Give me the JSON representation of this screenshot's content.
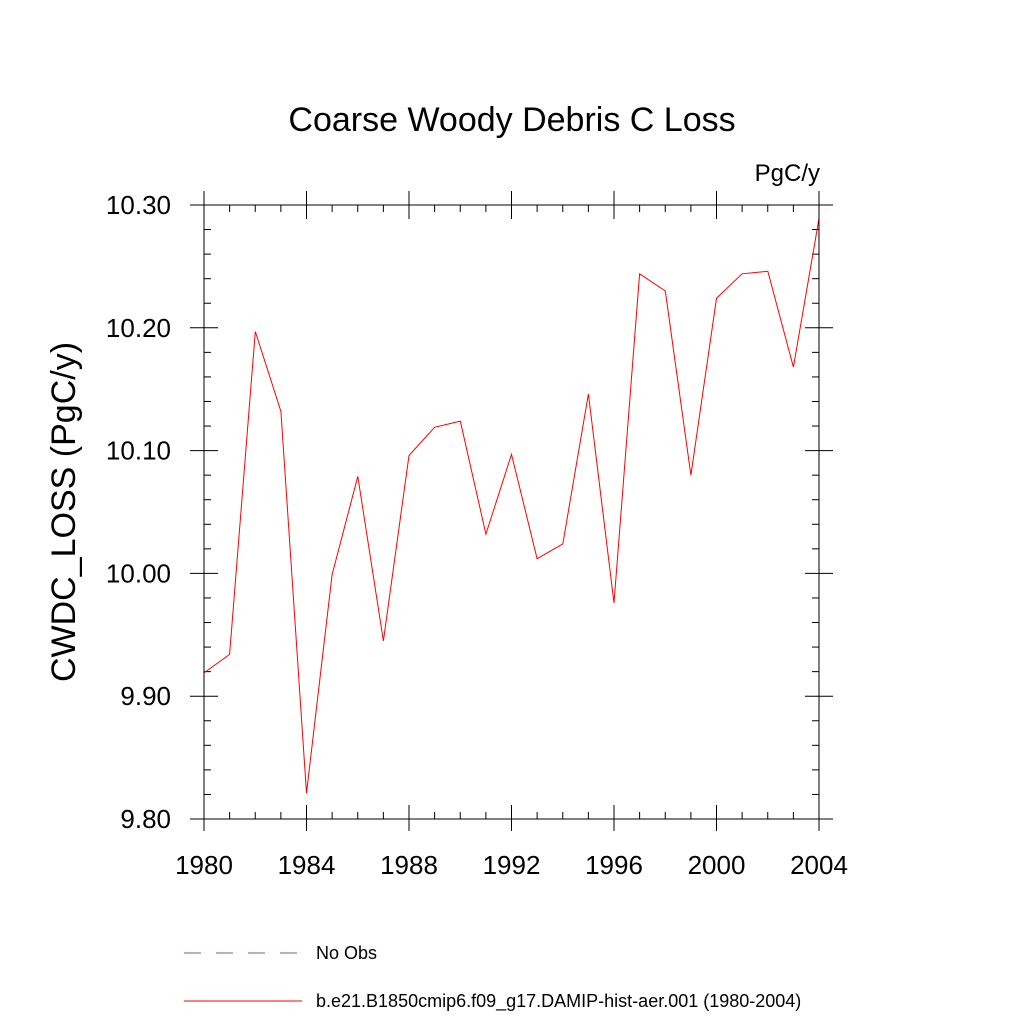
{
  "chart_data": {
    "type": "line",
    "title": "Coarse Woody Debris C Loss",
    "units_label": "PgC/y",
    "ylabel": "CWDC_LOSS  (PgC/y)",
    "xlabel": "",
    "xlim": [
      1980,
      2004
    ],
    "ylim": [
      9.8,
      10.3
    ],
    "x_ticks": [
      1980,
      1984,
      1988,
      1992,
      1996,
      2000,
      2004
    ],
    "x_tick_labels": [
      "1980",
      "1984",
      "1988",
      "1992",
      "1996",
      "2000",
      "2004"
    ],
    "y_ticks": [
      9.8,
      9.9,
      10.0,
      10.1,
      10.2,
      10.3
    ],
    "y_tick_labels": [
      "9.80",
      "9.90",
      "10.00",
      "10.10",
      "10.20",
      "10.30"
    ],
    "grid": false,
    "legend_position": "bottom",
    "series": [
      {
        "name": "b.e21.B1850cmip6.f09_g17.DAMIP-hist-aer.001 (1980-2004)",
        "color": "#ff0000",
        "line_style": "solid",
        "x": [
          1980,
          1981,
          1982,
          1983,
          1984,
          1985,
          1986,
          1987,
          1988,
          1989,
          1990,
          1991,
          1992,
          1993,
          1994,
          1995,
          1996,
          1997,
          1998,
          1999,
          2000,
          2001,
          2002,
          2003,
          2004
        ],
        "y": [
          9.919,
          9.934,
          10.197,
          10.132,
          9.821,
          9.999,
          10.079,
          9.945,
          10.096,
          10.119,
          10.124,
          10.032,
          10.097,
          10.012,
          10.024,
          10.146,
          9.976,
          10.244,
          10.23,
          10.08,
          10.224,
          10.244,
          10.246,
          10.168,
          10.289
        ]
      }
    ],
    "legend": [
      {
        "label": "No Obs",
        "color": "#6060c0",
        "line_style": "dashed"
      },
      {
        "label": "b.e21.B1850cmip6.f09_g17.DAMIP-hist-aer.001 (1980-2004)",
        "color": "#ff0000",
        "line_style": "solid"
      }
    ]
  }
}
